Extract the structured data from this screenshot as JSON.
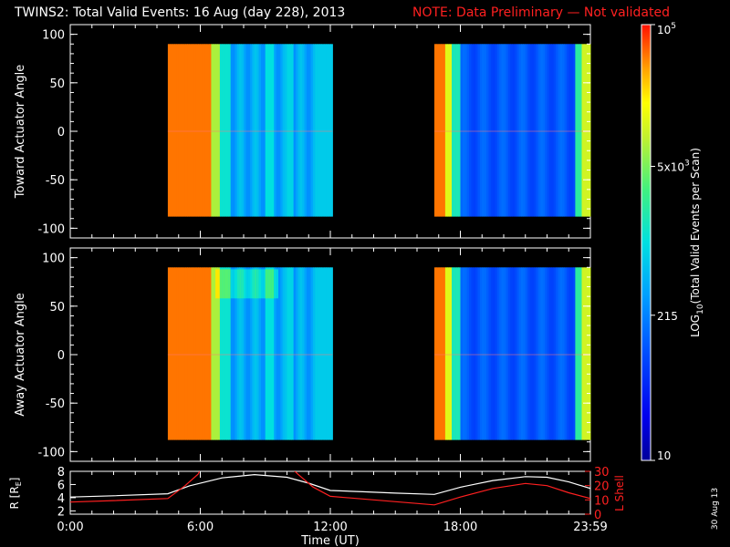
{
  "header": {
    "title": "TWINS2: Total Valid Events: 16 Aug (day 228), 2013",
    "note": "NOTE: Data Preliminary — Not validated"
  },
  "colorbar": {
    "label_parts": {
      "prefix": "LOG",
      "sub": "10",
      "suffix": "(Total Valid  Events per Scan)"
    },
    "ticks": [
      {
        "label": "10",
        "value": 10
      },
      {
        "label": "215",
        "value": 215
      },
      {
        "label": "5x10",
        "sup": "3",
        "value": 5000
      },
      {
        "label": "10",
        "sup": "5",
        "value": 100000
      }
    ],
    "range": [
      10,
      100000
    ],
    "scale": "log"
  },
  "chart_data": [
    {
      "type": "heatmap",
      "panel": "top",
      "ylabel": "Toward Actuator Angle",
      "ylim": [
        -110,
        110
      ],
      "yticks": [
        100,
        50,
        0,
        -50,
        -100
      ],
      "xlim": [
        0,
        24
      ],
      "data_angle_range": [
        -88,
        90
      ],
      "data_time_ranges": [
        [
          4.5,
          12.1
        ],
        [
          16.8,
          24
        ]
      ],
      "color_scale": "log",
      "description_of_values": "high counts (~1e5) 4:30-6:40 UT and near 16:50 UT; moderate counts (~200-1000) elsewhere; yellow-green rise near 23:50 UT"
    },
    {
      "type": "heatmap",
      "panel": "middle",
      "ylabel": "Away Actuator Angle",
      "ylim": [
        -110,
        110
      ],
      "yticks": [
        100,
        50,
        0,
        -50,
        -100
      ],
      "xlim": [
        0,
        24
      ],
      "data_angle_range": [
        -88,
        90
      ],
      "data_time_ranges": [
        [
          4.5,
          12.1
        ],
        [
          16.8,
          24
        ]
      ],
      "color_scale": "log"
    },
    {
      "type": "line",
      "panel": "bottom",
      "xlabel": "Time (UT)",
      "xlim": [
        0,
        24
      ],
      "xticks": [
        "0:00",
        "6:00",
        "12:00",
        "18:00",
        "23:59"
      ],
      "left_axis": {
        "label_parts": {
          "prefix": "R [R",
          "sub": "E",
          "suffix": "]"
        },
        "ylim": [
          1.5,
          8
        ],
        "yticks": [
          2,
          4,
          6,
          8
        ],
        "color": "#ffffff"
      },
      "right_axis": {
        "label": "L Shell",
        "ylim": [
          0,
          30
        ],
        "yticks": [
          0,
          10,
          20,
          30
        ],
        "color": "#ff2020"
      },
      "series": [
        {
          "name": "R",
          "axis": "left",
          "color": "#ffffff",
          "x": [
            0,
            2,
            4.5,
            5.5,
            7,
            8.5,
            10,
            11,
            12,
            13.5,
            15,
            16.8,
            18,
            19.5,
            21,
            22,
            23,
            24
          ],
          "y": [
            4.1,
            4.3,
            4.6,
            5.8,
            7.0,
            7.5,
            7.1,
            6.2,
            5.1,
            4.9,
            4.7,
            4.5,
            5.6,
            6.6,
            7.2,
            7.1,
            6.4,
            5.4
          ]
        },
        {
          "name": "L Shell",
          "axis": "right",
          "color": "#ff2020",
          "x": [
            0,
            2,
            4.5,
            5.3,
            5.9,
            6.0,
            10.3,
            10.5,
            11.2,
            12,
            14,
            16.8,
            18,
            19.5,
            21,
            22,
            23,
            24
          ],
          "y": [
            8.5,
            9.5,
            11,
            20,
            28,
            31,
            31,
            28,
            19,
            12.5,
            10,
            6.5,
            12,
            18,
            21.5,
            20,
            15,
            11
          ]
        }
      ]
    }
  ],
  "timestamp": "30 Aug 13"
}
